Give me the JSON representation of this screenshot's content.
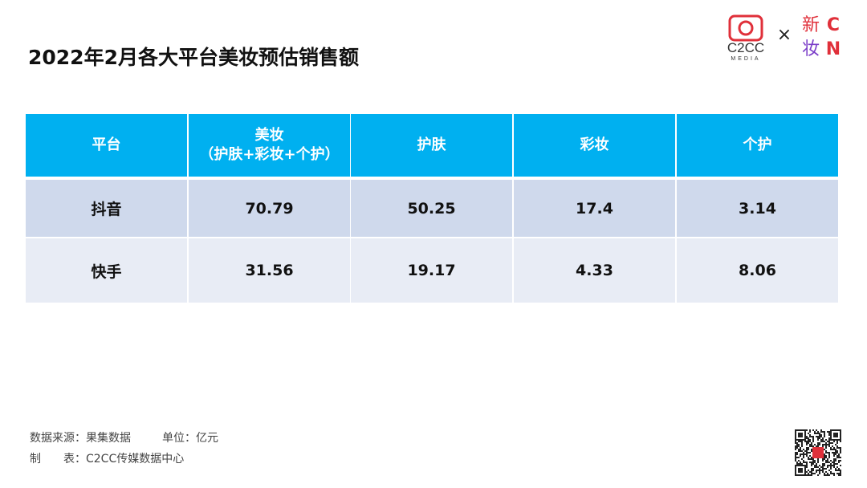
{
  "title": "2022年2月各大平台美妆预估销售额",
  "logo": {
    "left_name": "C2CC",
    "left_sub": "MEDIA",
    "separator": "×",
    "right_chars": [
      "新",
      "C",
      "妆",
      "N"
    ]
  },
  "table": {
    "header": [
      [
        "平台"
      ],
      [
        "美妆",
        "（护肤+彩妆+个护）"
      ],
      [
        "护肤"
      ],
      [
        "彩妆"
      ],
      [
        "个护"
      ]
    ],
    "rows": [
      [
        "抖音",
        70.79,
        50.25,
        17.4,
        3.14
      ],
      [
        "快手",
        31.56,
        19.17,
        4.33,
        8.06
      ]
    ]
  },
  "footer": {
    "source": "数据来源：果集数据",
    "unit": "单位：亿元",
    "maker": "制　　表：C2CC传媒数据中心"
  }
}
